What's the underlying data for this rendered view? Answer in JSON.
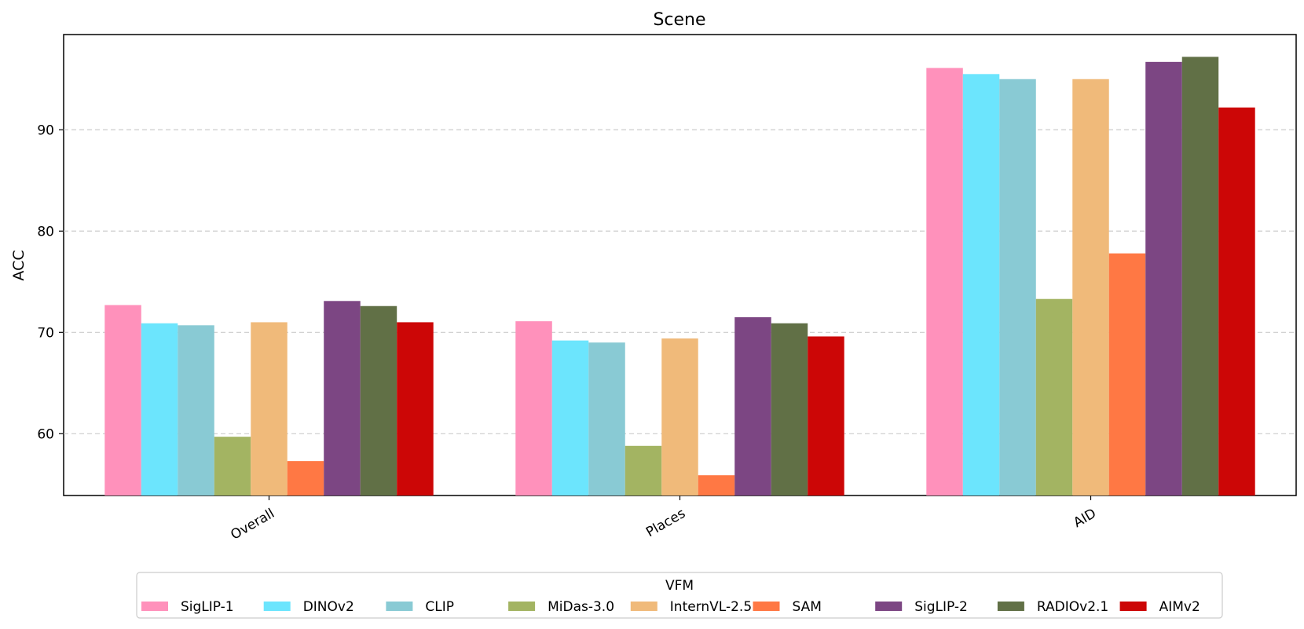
{
  "chart_data": {
    "type": "bar",
    "title": "Scene",
    "xlabel": "",
    "ylabel": "ACC",
    "ylim": [
      53.9,
      99.4
    ],
    "yticks": [
      60,
      70,
      80,
      90
    ],
    "grid": "y-dashed",
    "categories": [
      "Overall",
      "Places",
      "AID"
    ],
    "legend": {
      "title": "VFM",
      "position": "bottom-center"
    },
    "series": [
      {
        "name": "SigLIP-1",
        "color": "#ff91bb",
        "values": [
          72.7,
          71.1,
          96.1
        ]
      },
      {
        "name": "DINOv2",
        "color": "#6ce5fd",
        "values": [
          70.9,
          69.2,
          95.5
        ]
      },
      {
        "name": "CLIP",
        "color": "#89cad4",
        "values": [
          70.7,
          69.0,
          95.0
        ]
      },
      {
        "name": "MiDas-3.0",
        "color": "#a3b462",
        "values": [
          59.7,
          58.8,
          73.3
        ]
      },
      {
        "name": "InternVL-2.5",
        "color": "#f0ba7a",
        "values": [
          71.0,
          69.4,
          95.0
        ]
      },
      {
        "name": "SAM",
        "color": "#ff7844",
        "values": [
          57.3,
          55.9,
          77.8
        ]
      },
      {
        "name": "SigLIP-2",
        "color": "#7c4683",
        "values": [
          73.1,
          71.5,
          96.7
        ]
      },
      {
        "name": "RADIOv2.1",
        "color": "#617046",
        "values": [
          72.6,
          70.9,
          97.2
        ]
      },
      {
        "name": "AIMv2",
        "color": "#cc0606",
        "values": [
          71.0,
          69.6,
          92.2
        ]
      }
    ]
  }
}
